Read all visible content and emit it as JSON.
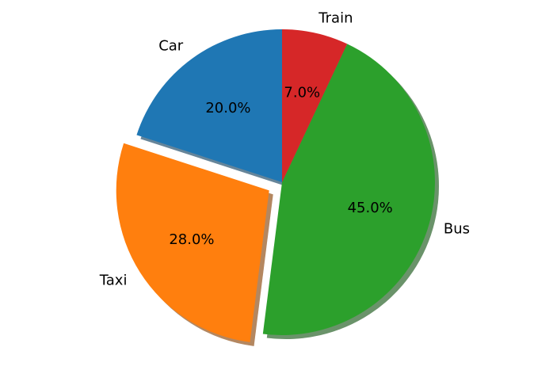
{
  "chart_data": {
    "type": "pie",
    "categories": [
      "Car",
      "Taxi",
      "Bus",
      "Train"
    ],
    "values": [
      20.0,
      28.0,
      45.0,
      7.0
    ],
    "value_labels": [
      "20.0%",
      "28.0%",
      "45.0%",
      "7.0%"
    ],
    "colors": [
      "#1f77b4",
      "#ff7f0e",
      "#2ca02c",
      "#d62728"
    ],
    "exploded": [
      false,
      true,
      false,
      false
    ],
    "start_angle_deg": 90,
    "direction": "counterclockwise",
    "shadow": true
  }
}
